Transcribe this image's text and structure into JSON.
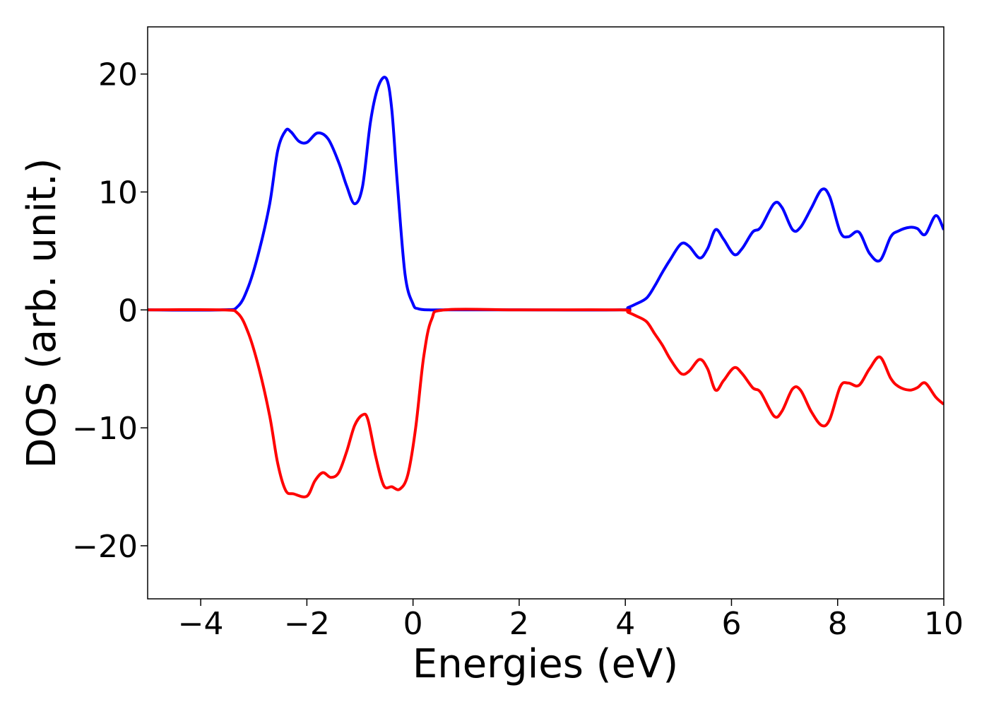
{
  "chart_data": {
    "type": "line",
    "title": "",
    "xlabel": "Energies (eV)",
    "ylabel": "DOS (arb. unit.)",
    "xlim": [
      -5,
      10
    ],
    "ylim": [
      -24.5,
      24
    ],
    "xticks": [
      -4,
      -2,
      0,
      2,
      4,
      6,
      8,
      10
    ],
    "xtick_labels": [
      "−4",
      "−2",
      "0",
      "2",
      "4",
      "6",
      "8",
      "10"
    ],
    "yticks": [
      -20,
      -10,
      0,
      10,
      20
    ],
    "ytick_labels": [
      "−20",
      "−10",
      "0",
      "10",
      "20"
    ],
    "grid": false,
    "legend": "none",
    "series": [
      {
        "color": "#0000ff",
        "x": [
          -5.0,
          -3.6,
          -3.3,
          -3.1,
          -2.9,
          -2.7,
          -2.55,
          -2.4,
          -2.3,
          -2.15,
          -2.0,
          -1.8,
          -1.6,
          -1.4,
          -1.25,
          -1.1,
          -0.95,
          -0.8,
          -0.65,
          -0.5,
          -0.4,
          -0.3,
          -0.15,
          0.0,
          0.1,
          0.3,
          0.6,
          2.0,
          3.9,
          4.05,
          4.2,
          4.4,
          4.55,
          4.7,
          4.85,
          5.05,
          5.2,
          5.4,
          5.55,
          5.7,
          5.85,
          6.05,
          6.2,
          6.4,
          6.55,
          6.8,
          6.95,
          7.15,
          7.3,
          7.5,
          7.7,
          7.85,
          8.05,
          8.2,
          8.4,
          8.6,
          8.8,
          9.0,
          9.15,
          9.35,
          9.5,
          9.65,
          9.85,
          10.0
        ],
        "y": [
          0,
          0,
          0.3,
          2,
          5,
          9,
          13.5,
          15.2,
          15.1,
          14.3,
          14.2,
          15.0,
          14.5,
          12.5,
          10.5,
          9.0,
          10.5,
          16,
          19,
          19.6,
          17,
          11,
          3,
          0.5,
          0.1,
          0,
          0,
          0,
          0,
          0.2,
          0.5,
          1.0,
          2.0,
          3.2,
          4.3,
          5.6,
          5.4,
          4.4,
          5.2,
          6.8,
          6.0,
          4.7,
          5.2,
          6.6,
          7.0,
          9.0,
          8.7,
          6.8,
          7.0,
          8.6,
          10.2,
          9.6,
          6.6,
          6.2,
          6.6,
          4.8,
          4.2,
          6.2,
          6.7,
          7.0,
          6.9,
          6.4,
          8.0,
          6.8
        ]
      },
      {
        "color": "#ff0000",
        "x": [
          -5.0,
          -3.6,
          -3.3,
          -3.1,
          -2.9,
          -2.7,
          -2.55,
          -2.4,
          -2.25,
          -2.0,
          -1.85,
          -1.7,
          -1.55,
          -1.4,
          -1.25,
          -1.1,
          -0.95,
          -0.85,
          -0.7,
          -0.55,
          -0.4,
          -0.25,
          -0.1,
          0.05,
          0.2,
          0.35,
          0.6,
          2.0,
          3.9,
          4.05,
          4.2,
          4.4,
          4.55,
          4.7,
          4.85,
          5.05,
          5.2,
          5.4,
          5.55,
          5.7,
          5.85,
          6.05,
          6.2,
          6.4,
          6.55,
          6.8,
          6.95,
          7.15,
          7.3,
          7.5,
          7.7,
          7.85,
          8.05,
          8.2,
          8.4,
          8.6,
          8.8,
          9.0,
          9.15,
          9.35,
          9.5,
          9.65,
          9.85,
          10.0
        ],
        "y": [
          0,
          0,
          -0.3,
          -2,
          -5,
          -9,
          -13,
          -15.3,
          -15.6,
          -15.8,
          -14.5,
          -13.8,
          -14.2,
          -13.8,
          -12.0,
          -9.8,
          -8.9,
          -9.3,
          -12.5,
          -14.9,
          -15.0,
          -15.2,
          -14.0,
          -10,
          -4,
          -0.8,
          0,
          0,
          0,
          -0.2,
          -0.5,
          -1.0,
          -2.0,
          -3.0,
          -4.2,
          -5.4,
          -5.2,
          -4.2,
          -5.0,
          -6.8,
          -6.0,
          -4.9,
          -5.4,
          -6.6,
          -7.0,
          -9.0,
          -8.6,
          -6.7,
          -6.8,
          -8.6,
          -9.8,
          -9.3,
          -6.5,
          -6.2,
          -6.4,
          -5.0,
          -4.0,
          -5.8,
          -6.5,
          -6.8,
          -6.6,
          -6.2,
          -7.4,
          -8.0
        ]
      }
    ]
  }
}
